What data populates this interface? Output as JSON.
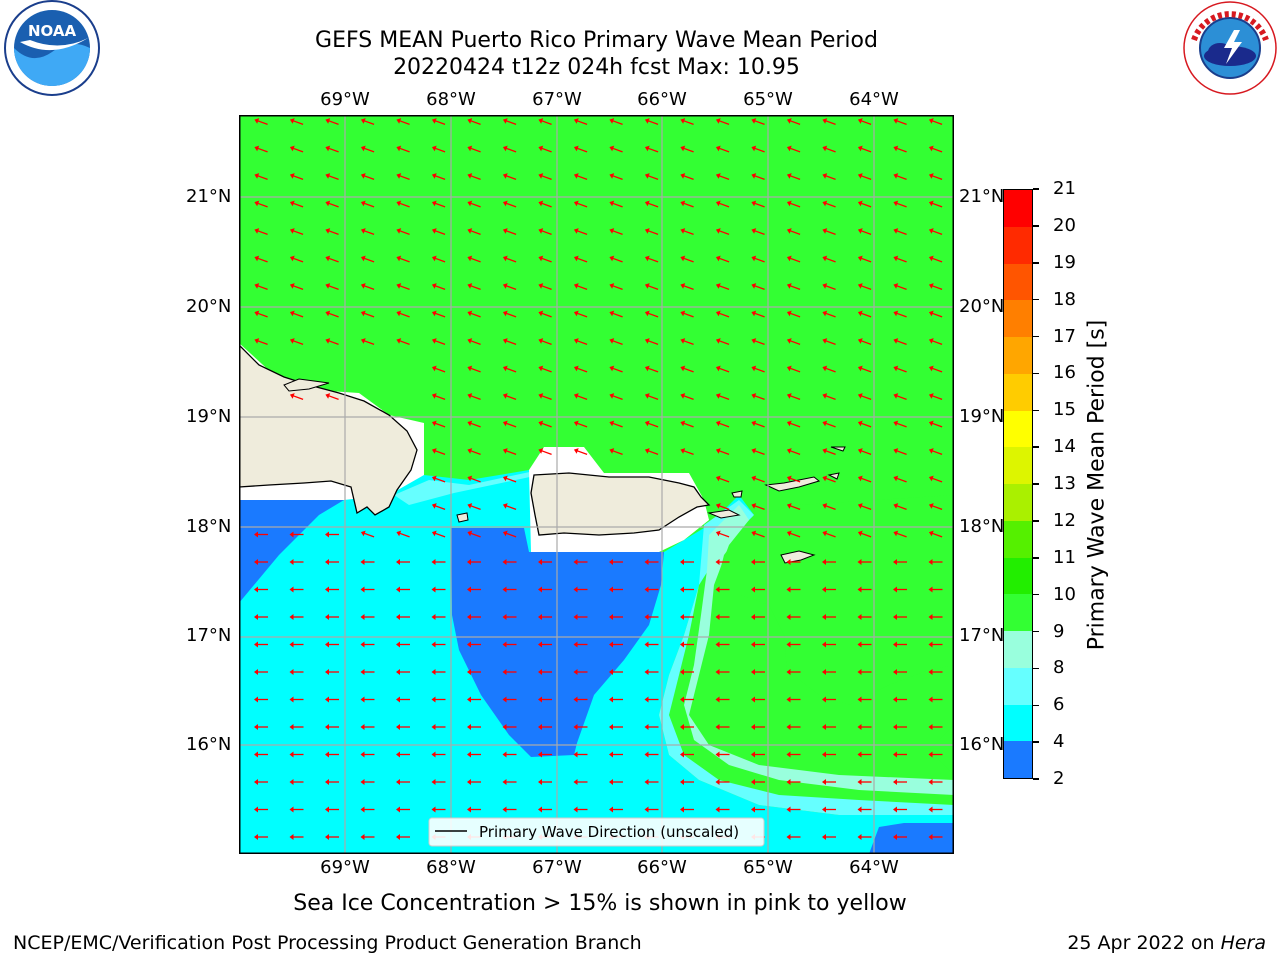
{
  "header": {
    "title_line1": "GEFS MEAN Puerto Rico Primary Wave Mean Period",
    "title_line2": "20220424 t12z 024h fcst   Max: 10.95"
  },
  "logos": {
    "left": {
      "name": "noaa-logo",
      "text": "NOAA",
      "ring_text": "NATIONAL OCEANIC AND ATMOSPHERIC ADMINISTRATION · U.S. DEPARTMENT OF COMMERCE"
    },
    "right": {
      "name": "nws-logo",
      "ring_text": "NATIONAL WEATHER SERVICE"
    }
  },
  "map": {
    "lon_labels": [
      "69°W",
      "68°W",
      "67°W",
      "66°W",
      "65°W",
      "64°W"
    ],
    "lat_labels": [
      "21°N",
      "20°N",
      "19°N",
      "18°N",
      "17°N",
      "16°N"
    ],
    "legend_label": "Primary Wave Direction (unscaled)",
    "arrow_color": "#ff0000",
    "colors": {
      "green": "#33ff33",
      "cyan": "#00ffff",
      "light_cyan": "#66ffff",
      "mint": "#99ffdd",
      "blue": "#1a7aff",
      "land": "#efecdc"
    }
  },
  "colorbar": {
    "label": "Primary Wave Mean Period [s]",
    "ticks": [
      "21",
      "20",
      "19",
      "18",
      "17",
      "16",
      "15",
      "14",
      "13",
      "12",
      "11",
      "10",
      "9",
      "8",
      "6",
      "4",
      "2"
    ],
    "colors": [
      "#ff0000",
      "#ff2a00",
      "#ff5500",
      "#ff7f00",
      "#ffa600",
      "#ffcc00",
      "#ffff00",
      "#ddf500",
      "#aaf000",
      "#55f000",
      "#22ee00",
      "#33ff33",
      "#99ffdd",
      "#66ffff",
      "#00ffff",
      "#1a7aff",
      "#0000ff"
    ]
  },
  "footer": {
    "note": "Sea Ice Concentration > 15% is shown in pink to yellow",
    "org": "NCEP/EMC/Verification Post Processing Product Generation Branch",
    "date": "25 Apr 2022 on ",
    "machine": "Hera"
  }
}
